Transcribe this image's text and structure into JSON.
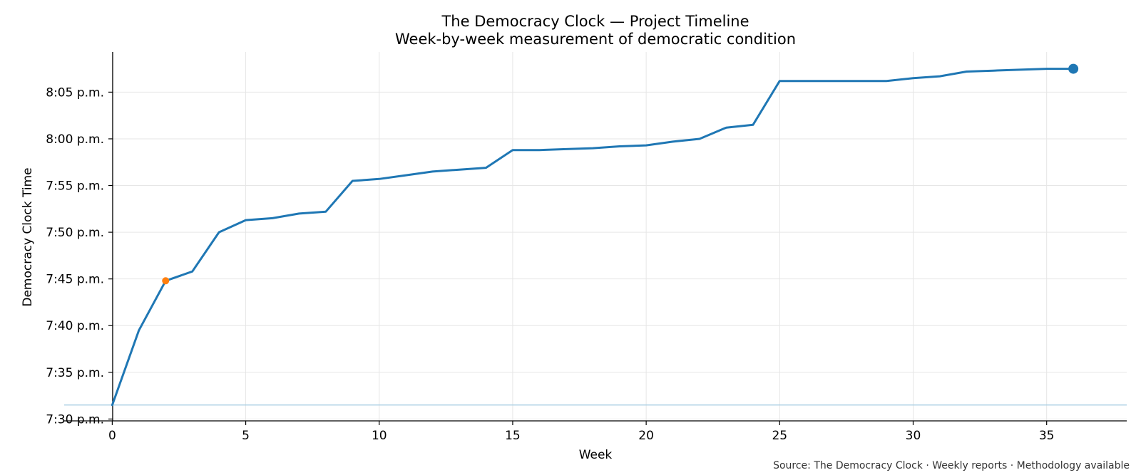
{
  "chart_data": {
    "type": "line",
    "title": "The Democracy Clock — Project Timeline",
    "subtitle": "Week-by-week measurement of democratic condition",
    "xlabel": "Week",
    "ylabel": "Democracy Clock Time",
    "source": "Source: The Democracy Clock · Weekly reports · Methodology available",
    "xlim": [
      -1.8,
      38
    ],
    "ylim": [
      "7:29.8 p.m.",
      "8:09.3 p.m."
    ],
    "x_ticks": [
      0,
      5,
      10,
      15,
      20,
      25,
      30,
      35
    ],
    "x_tick_labels": [
      "0",
      "5",
      "10",
      "15",
      "20",
      "25",
      "30",
      "35"
    ],
    "y_ticks": [
      "7:30 p.m.",
      "7:35 p.m.",
      "7:40 p.m.",
      "7:45 p.m.",
      "7:50 p.m.",
      "7:55 p.m.",
      "8:00 p.m.",
      "8:05 p.m."
    ],
    "y_tick_labels": [
      "7:30 p.m.",
      "7:35 p.m.",
      "7:40 p.m.",
      "7:45 p.m.",
      "7:50 p.m.",
      "7:55 p.m.",
      "8:00 p.m.",
      "8:05 p.m."
    ],
    "grid": true,
    "baseline": "7:31.5 p.m.",
    "series": [
      {
        "color": "#1f77b4",
        "x": [
          0,
          1,
          2,
          3,
          4,
          5,
          6,
          7,
          8,
          9,
          10,
          11,
          12,
          13,
          14,
          15,
          16,
          17,
          18,
          19,
          20,
          21,
          22,
          23,
          24,
          25,
          26,
          27,
          28,
          29,
          30,
          31,
          32,
          33,
          34,
          35,
          36
        ],
        "y": [
          "7:31.5 p.m.",
          "7:39.5 p.m.",
          "7:44.8 p.m.",
          "7:45.8 p.m.",
          "7:50.0 p.m.",
          "7:51.3 p.m.",
          "7:51.5 p.m.",
          "7:52.0 p.m.",
          "7:52.2 p.m.",
          "7:55.5 p.m.",
          "7:55.7 p.m.",
          "7:56.1 p.m.",
          "7:56.5 p.m.",
          "7:56.7 p.m.",
          "7:56.9 p.m.",
          "7:58.8 p.m.",
          "7:58.8 p.m.",
          "7:58.9 p.m.",
          "7:59.0 p.m.",
          "7:59.2 p.m.",
          "7:59.3 p.m.",
          "7:59.7 p.m.",
          "8:00.0 p.m.",
          "8:01.2 p.m.",
          "8:01.5 p.m.",
          "8:06.2 p.m.",
          "8:06.2 p.m.",
          "8:06.2 p.m.",
          "8:06.2 p.m.",
          "8:06.2 p.m.",
          "8:06.5 p.m.",
          "8:06.7 p.m.",
          "8:07.2 p.m.",
          "8:07.3 p.m.",
          "8:07.4 p.m.",
          "8:07.5 p.m.",
          "8:07.5 p.m."
        ]
      }
    ],
    "highlight_points": [
      {
        "x": 2,
        "y": "7:44.8 p.m.",
        "color": "#ff7f0e"
      },
      {
        "x": 36,
        "y": "8:07.5 p.m.",
        "color": "#1f77b4"
      }
    ],
    "colors": {
      "line": "#1f77b4",
      "highlight": "#ff7f0e",
      "baseline": "#a6cee3",
      "grid": "#e6e6e6",
      "axis": "#000000"
    }
  }
}
